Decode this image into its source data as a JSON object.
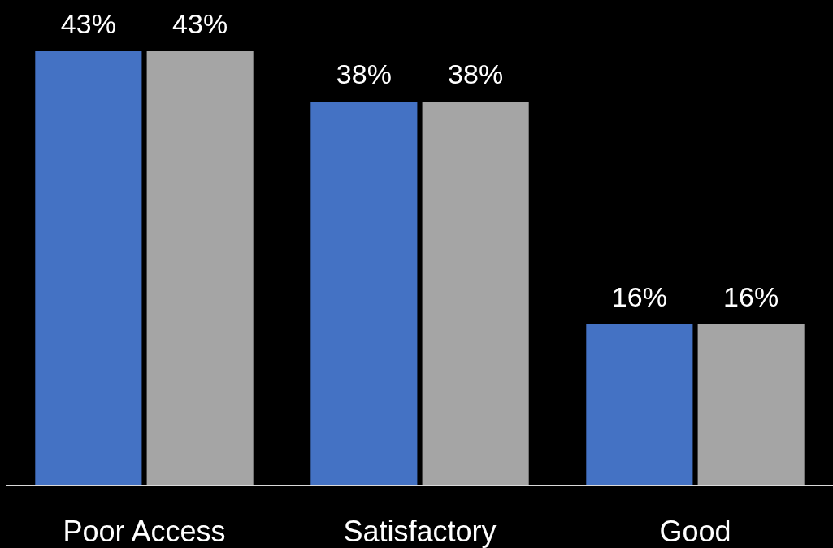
{
  "chart_data": {
    "type": "bar",
    "categories": [
      "Poor Access",
      "Satisfactory",
      "Good"
    ],
    "series": [
      {
        "color": "#4472c4",
        "values": [
          43,
          38,
          16
        ],
        "value_labels": [
          "43%",
          "38%",
          "16%"
        ]
      },
      {
        "color": "#a5a5a5",
        "values": [
          43,
          38,
          16
        ],
        "value_labels": [
          "43%",
          "38%",
          "16%"
        ]
      }
    ],
    "tick_labels": "x"
  }
}
